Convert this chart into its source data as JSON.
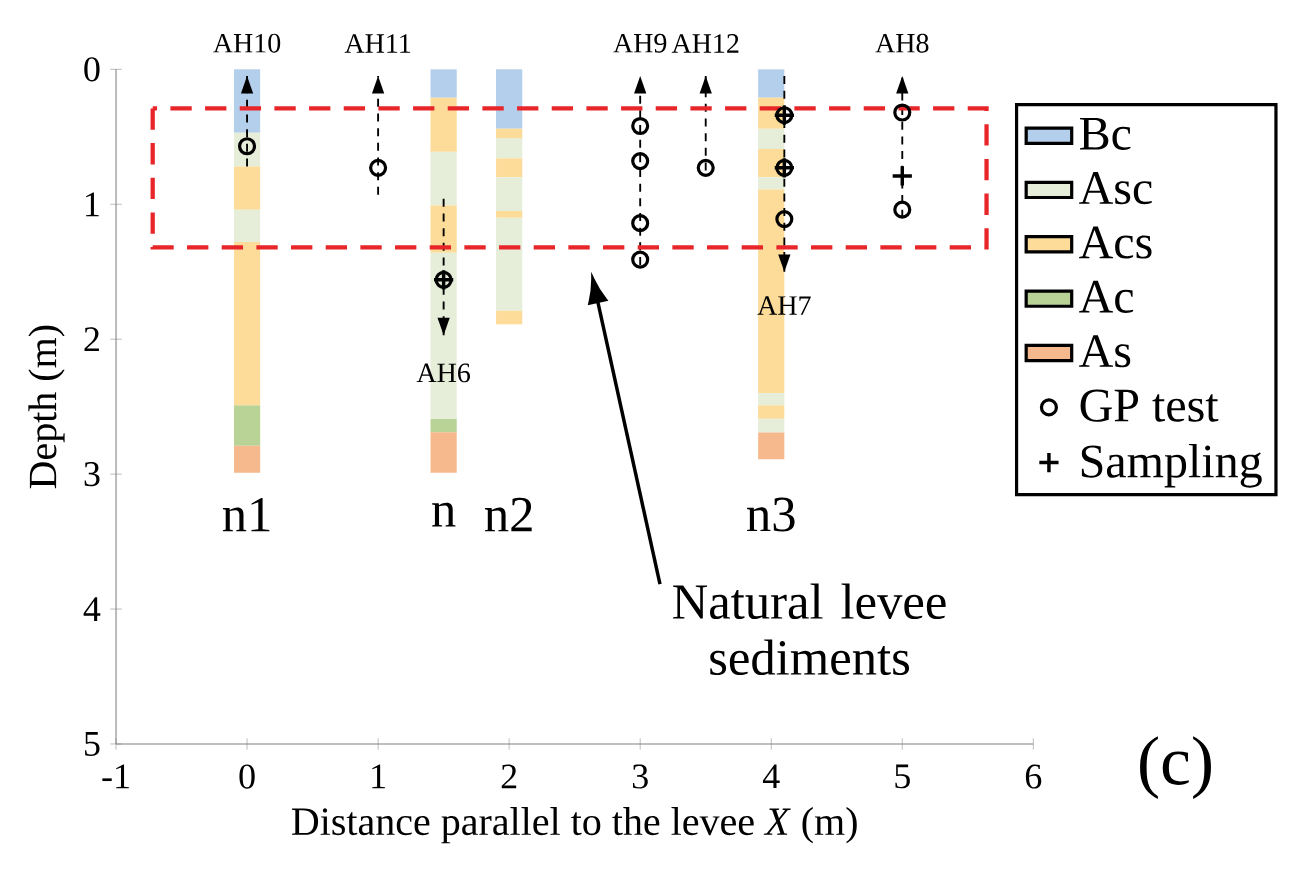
{
  "chart_data": {
    "type": "bar",
    "stacked": true,
    "xlabel": "Distance parallel to the levee *X* (m)",
    "ylabel": "Depth (m)",
    "x": [
      0,
      1.5,
      2,
      4
    ],
    "xlim": [
      -1,
      6
    ],
    "xticks": [
      -1,
      0,
      1,
      2,
      3,
      4,
      5,
      6
    ],
    "ylim": [
      5,
      0
    ],
    "yticks": [
      0,
      1,
      2,
      3,
      4,
      5
    ],
    "legend": "right",
    "grid": false,
    "series": [
      {
        "name": "Bc",
        "color": "#b4cfec",
        "values": [
          0.47,
          0.21,
          0.44,
          0.21
        ]
      },
      {
        "color": "#fcdc98",
        "values": [
          null,
          0.4,
          0.07,
          0.23
        ]
      },
      {
        "name": "Asc",
        "color": "#e6edd9",
        "values": [
          0.25,
          0.4,
          0.15,
          0.15
        ]
      },
      {
        "name": "Acs",
        "color": "#fcdc98",
        "values": [
          0.32,
          0.35,
          0.14,
          0.21
        ]
      },
      {
        "color": "#e6edd9",
        "values": [
          0.24,
          1.23,
          0.25,
          0.09
        ]
      },
      {
        "color": "#fcdc98",
        "values": [
          1.21,
          null,
          0.05,
          1.51
        ]
      },
      {
        "color": "#e6edd9",
        "values": [
          null,
          null,
          0.69,
          0.09
        ]
      },
      {
        "color": "#fcdc98",
        "values": [
          null,
          null,
          0.1,
          0.1
        ]
      },
      {
        "color": "#e6edd9",
        "values": [
          null,
          null,
          null,
          0.1
        ]
      },
      {
        "name": "Ac",
        "color": "#b9d396",
        "values": [
          0.3,
          0.1,
          null,
          null
        ]
      },
      {
        "name": "As",
        "color": "#f6b98e",
        "values": [
          0.2,
          0.3,
          null,
          0.2
        ]
      },
      {
        "type": "line",
        "line_style": "dashed",
        "color": "#000000",
        "x": [
          0,
          0
        ],
        "values": [
          0.72,
          0.05
        ]
      },
      {
        "type": "line",
        "line_style": "dashed",
        "color": "#000000",
        "x": [
          1,
          1
        ],
        "values": [
          0.93,
          0.05
        ]
      },
      {
        "type": "line",
        "line_style": "dashed",
        "color": "#000000",
        "x": [
          1.5,
          1.5
        ],
        "values": [
          0.96,
          1.97
        ]
      },
      {
        "type": "line",
        "line_style": "dashed",
        "color": "#000000",
        "x": [
          3,
          3
        ],
        "values": [
          1.45,
          0.05
        ]
      },
      {
        "type": "line",
        "line_style": "dashed",
        "color": "#000000",
        "x": [
          3.5,
          3.5
        ],
        "values": [
          0.75,
          0.05
        ]
      },
      {
        "type": "line",
        "line_style": "dashed",
        "color": "#000000",
        "x": [
          4.1,
          4.1
        ],
        "values": [
          0.05,
          1.5
        ]
      },
      {
        "type": "line",
        "line_style": "dashed",
        "color": "#000000",
        "x": [
          5,
          5
        ],
        "values": [
          1.1,
          0.05
        ]
      },
      {
        "name": "GP test",
        "type": "scatter",
        "marker": "circle",
        "color": "#000000",
        "x": [
          0,
          1,
          1.5,
          3,
          3,
          3,
          3,
          3.5,
          4.1,
          4.1,
          4.1,
          5,
          5
        ],
        "values": [
          0.57,
          0.73,
          1.56,
          0.42,
          0.68,
          1.14,
          1.41,
          0.73,
          0.34,
          0.73,
          1.11,
          0.32,
          1.04
        ]
      },
      {
        "name": "Sampling",
        "type": "scatter",
        "marker": "cross",
        "color": "#000000",
        "x": [
          5,
          1.5,
          4.1,
          4.1
        ],
        "values": [
          0.79,
          1.56,
          0.34,
          0.73
        ]
      }
    ],
    "annotations": [
      "AH10",
      "AH11",
      "AH9",
      "AH12",
      "AH8",
      "AH6",
      "AH7",
      "n1",
      "n",
      "n2",
      "n3",
      "Natural levee sediments",
      "(c)"
    ]
  }
}
